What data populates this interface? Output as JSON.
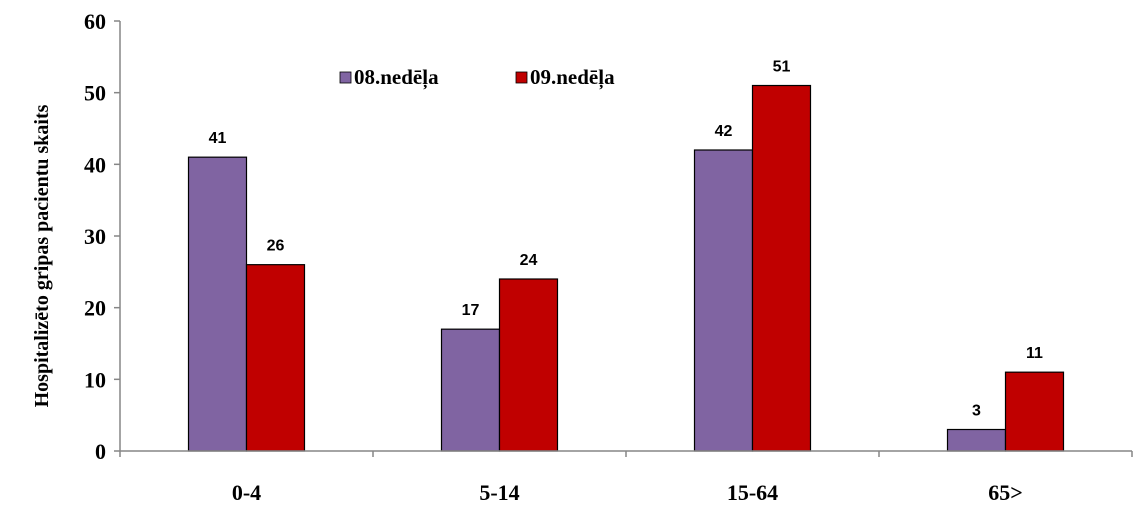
{
  "chart_data": {
    "type": "bar",
    "categories": [
      "0-4",
      "5-14",
      "15-64",
      "65>"
    ],
    "series": [
      {
        "name": "08.nedēļa",
        "values": [
          41,
          17,
          42,
          3
        ],
        "color": "#8064A2"
      },
      {
        "name": "09.nedēļa",
        "values": [
          26,
          24,
          51,
          11
        ],
        "color": "#C00000"
      }
    ],
    "title": "",
    "xlabel": "",
    "ylabel": "Hospitalizēto gripas pacientu skaits",
    "ylim": [
      0,
      60
    ],
    "yticks": [
      0,
      10,
      20,
      30,
      40,
      50,
      60
    ],
    "grid": false,
    "legend_position": "top",
    "data_labels": true
  }
}
